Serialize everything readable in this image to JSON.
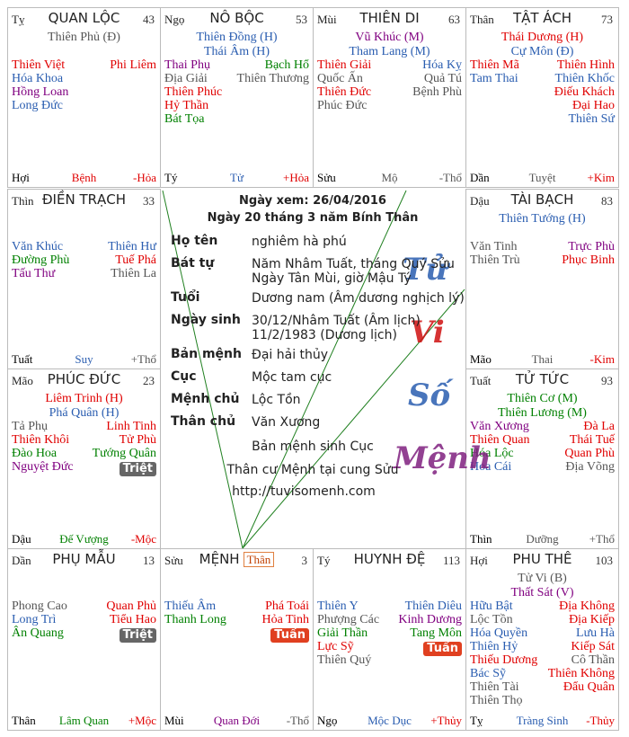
{
  "palaces": [
    {
      "branch": "Tỵ",
      "name": "QUAN LỘC",
      "number": 43,
      "main": [
        {
          "text": "Thiên Phủ (Đ)",
          "color": "#555555"
        }
      ],
      "left": [
        {
          "text": "Thiên Việt",
          "color": "#e00000"
        },
        {
          "text": "Hóa Khoa",
          "color": "#2a5db0"
        },
        {
          "text": "Hồng Loan",
          "color": "#800080"
        },
        {
          "text": "Long Đức",
          "color": "#2a5db0"
        }
      ],
      "right": [
        {
          "text": "Phi Liêm",
          "color": "#e00000"
        }
      ],
      "bottom": {
        "branch": "Hợi",
        "stage": "Bệnh",
        "stage_color": "#e00000",
        "element": "-Hỏa",
        "element_color": "#e00000"
      }
    },
    {
      "branch": "Ngọ",
      "name": "NÔ BỘC",
      "number": 53,
      "main": [
        {
          "text": "Thiên Đồng (H)",
          "color": "#2a5db0"
        },
        {
          "text": "Thái Âm (H)",
          "color": "#2a5db0"
        }
      ],
      "left": [
        {
          "text": "Thai Phụ",
          "color": "#800080"
        },
        {
          "text": "Địa Giải",
          "color": "#555555"
        },
        {
          "text": "Thiên Phúc",
          "color": "#e00000"
        },
        {
          "text": "Hỷ Thần",
          "color": "#e00000"
        },
        {
          "text": "Bát Tọa",
          "color": "#008000"
        }
      ],
      "right": [
        {
          "text": "Bạch Hổ",
          "color": "#008000"
        },
        {
          "text": "Thiên Thương",
          "color": "#555555"
        }
      ],
      "bottom": {
        "branch": "Tý",
        "stage": "Tử",
        "stage_color": "#2a5db0",
        "element": "+Hỏa",
        "element_color": "#e00000"
      }
    },
    {
      "branch": "Mùi",
      "name": "THIÊN DI",
      "number": 63,
      "main": [
        {
          "text": "Vũ Khúc (M)",
          "color": "#800080"
        },
        {
          "text": "Tham Lang (M)",
          "color": "#2a5db0"
        }
      ],
      "left": [
        {
          "text": "Thiên Giải",
          "color": "#e00000"
        },
        {
          "text": "Quốc Ấn",
          "color": "#555555"
        },
        {
          "text": "Thiên Đức",
          "color": "#e00000"
        },
        {
          "text": "Phúc Đức",
          "color": "#555555"
        }
      ],
      "right": [
        {
          "text": "Hóa Kỵ",
          "color": "#2a5db0"
        },
        {
          "text": "Quả Tú",
          "color": "#555555"
        },
        {
          "text": "Bệnh Phù",
          "color": "#555555"
        }
      ],
      "bottom": {
        "branch": "Sửu",
        "stage": "Mộ",
        "stage_color": "#555555",
        "element": "-Thổ",
        "element_color": "#555555"
      }
    },
    {
      "branch": "Thân",
      "name": "TẬT ÁCH",
      "number": 73,
      "main": [
        {
          "text": "Thái Dương (H)",
          "color": "#e00000"
        },
        {
          "text": "Cự Môn (Đ)",
          "color": "#2a5db0"
        }
      ],
      "left": [
        {
          "text": "Thiên Mã",
          "color": "#e00000"
        },
        {
          "text": "Tam Thai",
          "color": "#2a5db0"
        }
      ],
      "right": [
        {
          "text": "Thiên Hình",
          "color": "#e00000"
        },
        {
          "text": "Thiên Khốc",
          "color": "#2a5db0"
        },
        {
          "text": "Điếu Khách",
          "color": "#e00000"
        },
        {
          "text": "Đại Hao",
          "color": "#e00000"
        },
        {
          "text": "Thiên Sứ",
          "color": "#2a5db0"
        }
      ],
      "bottom": {
        "branch": "Dần",
        "stage": "Tuyệt",
        "stage_color": "#555555",
        "element": "+Kim",
        "element_color": "#e00000"
      }
    },
    {
      "branch": "Thìn",
      "name": "ĐIỀN TRẠCH",
      "number": 33,
      "main": [],
      "left": [
        {
          "text": "Văn Khúc",
          "color": "#2a5db0"
        },
        {
          "text": "Đường Phù",
          "color": "#008000"
        },
        {
          "text": "Tấu Thư",
          "color": "#800080"
        }
      ],
      "right": [
        {
          "text": "Thiên Hư",
          "color": "#2a5db0"
        },
        {
          "text": "Tuế Phá",
          "color": "#e00000"
        },
        {
          "text": "Thiên La",
          "color": "#555555"
        }
      ],
      "bottom": {
        "branch": "Tuất",
        "stage": "Suy",
        "stage_color": "#2a5db0",
        "element": "+Thổ",
        "element_color": "#555555"
      }
    },
    {
      "branch": "Dậu",
      "name": "TÀI BẠCH",
      "number": 83,
      "main": [
        {
          "text": "Thiên Tướng (H)",
          "color": "#2a5db0"
        }
      ],
      "left": [
        {
          "text": "Văn Tinh",
          "color": "#555555"
        },
        {
          "text": "Thiên Trù",
          "color": "#555555"
        }
      ],
      "right": [
        {
          "text": "Trực Phù",
          "color": "#800080"
        },
        {
          "text": "Phục Binh",
          "color": "#e00000"
        }
      ],
      "bottom": {
        "branch": "Mão",
        "stage": "Thai",
        "stage_color": "#555555",
        "element": "-Kim",
        "element_color": "#e00000"
      }
    },
    {
      "branch": "Mão",
      "name": "PHÚC ĐỨC",
      "number": 23,
      "main": [
        {
          "text": "Liêm Trinh (H)",
          "color": "#e00000"
        },
        {
          "text": "Phá Quân (H)",
          "color": "#2a5db0"
        }
      ],
      "left": [
        {
          "text": "Tả Phụ",
          "color": "#555555"
        },
        {
          "text": "Thiên Khôi",
          "color": "#e00000"
        },
        {
          "text": "Đào Hoa",
          "color": "#008000"
        },
        {
          "text": "Nguyệt Đức",
          "color": "#800080"
        }
      ],
      "right": [
        {
          "text": "Linh Tinh",
          "color": "#e00000"
        },
        {
          "text": "Tử Phù",
          "color": "#e00000"
        },
        {
          "text": "Tướng Quân",
          "color": "#008000"
        }
      ],
      "badge": {
        "text": "Triệt",
        "color": "#666666"
      },
      "bottom": {
        "branch": "Dậu",
        "stage": "Đế Vượng",
        "stage_color": "#008000",
        "element": "-Mộc",
        "element_color": "#e00000"
      }
    },
    {
      "branch": "Tuất",
      "name": "TỬ TỨC",
      "number": 93,
      "main": [
        {
          "text": "Thiên Cơ (M)",
          "color": "#008000"
        },
        {
          "text": "Thiên Lương (M)",
          "color": "#008000"
        }
      ],
      "left": [
        {
          "text": "Văn Xương",
          "color": "#800080"
        },
        {
          "text": "Thiên Quan",
          "color": "#e00000"
        },
        {
          "text": "Hóa Lộc",
          "color": "#008000"
        },
        {
          "text": "Hoa Cái",
          "color": "#2a5db0"
        }
      ],
      "right": [
        {
          "text": "Đà La",
          "color": "#e00000"
        },
        {
          "text": "Thái Tuế",
          "color": "#e00000"
        },
        {
          "text": "Quan Phù",
          "color": "#e00000"
        },
        {
          "text": "Địa Võng",
          "color": "#555555"
        }
      ],
      "bottom": {
        "branch": "Thìn",
        "stage": "Dưỡng",
        "stage_color": "#555555",
        "element": "+Thổ",
        "element_color": "#555555"
      }
    },
    {
      "branch": "Dần",
      "name": "PHỤ MẪU",
      "number": 13,
      "main": [],
      "left": [
        {
          "text": "Phong Cao",
          "color": "#555555"
        },
        {
          "text": "Long Trì",
          "color": "#2a5db0"
        },
        {
          "text": "Ân Quang",
          "color": "#008000"
        }
      ],
      "right": [
        {
          "text": "Quan Phủ",
          "color": "#e00000"
        },
        {
          "text": "Tiểu Hao",
          "color": "#e00000"
        }
      ],
      "badge": {
        "text": "Triệt",
        "color": "#666666"
      },
      "bottom": {
        "branch": "Thân",
        "stage": "Lâm Quan",
        "stage_color": "#008000",
        "element": "+Mộc",
        "element_color": "#e00000"
      }
    },
    {
      "branch": "Sửu",
      "name": "MỆNH",
      "number": 3,
      "tag": "Thân",
      "main": [],
      "left": [
        {
          "text": "Thiếu Âm",
          "color": "#2a5db0"
        },
        {
          "text": "Thanh Long",
          "color": "#008000"
        }
      ],
      "right": [
        {
          "text": "Phá Toái",
          "color": "#e00000"
        },
        {
          "text": "Hỏa Tinh",
          "color": "#e00000"
        }
      ],
      "badge": {
        "text": "Tuần",
        "color": "#e04020"
      },
      "bottom": {
        "branch": "Mùi",
        "stage": "Quan Đới",
        "stage_color": "#800080",
        "element": "-Thổ",
        "element_color": "#555555"
      }
    },
    {
      "branch": "Tý",
      "name": "HUYNH ĐỆ",
      "number": 113,
      "main": [],
      "left": [
        {
          "text": "Thiên Y",
          "color": "#2a5db0"
        },
        {
          "text": "Phượng Các",
          "color": "#555555"
        },
        {
          "text": "Giải Thần",
          "color": "#008000"
        },
        {
          "text": "Lực Sỹ",
          "color": "#e00000"
        },
        {
          "text": "Thiên Quý",
          "color": "#555555"
        }
      ],
      "right": [
        {
          "text": "Thiên Diêu",
          "color": "#2a5db0"
        },
        {
          "text": "Kinh Dương",
          "color": "#800080"
        },
        {
          "text": "Tang Môn",
          "color": "#008000"
        }
      ],
      "badge": {
        "text": "Tuần",
        "color": "#e04020"
      },
      "bottom": {
        "branch": "Ngọ",
        "stage": "Mộc Dục",
        "stage_color": "#2a5db0",
        "element": "+Thủy",
        "element_color": "#e00000"
      }
    },
    {
      "branch": "Hợi",
      "name": "PHU THÊ",
      "number": 103,
      "main": [
        {
          "text": "Tử Vi (B)",
          "color": "#555555"
        },
        {
          "text": "Thất Sát (V)",
          "color": "#800080"
        }
      ],
      "left": [
        {
          "text": "Hữu Bật",
          "color": "#2a5db0"
        },
        {
          "text": "Lộc Tồn",
          "color": "#555555"
        },
        {
          "text": "Hóa Quyền",
          "color": "#2a5db0"
        },
        {
          "text": "Thiên Hỷ",
          "color": "#2a5db0"
        },
        {
          "text": "Thiếu Dương",
          "color": "#e00000"
        },
        {
          "text": "Bác Sỹ",
          "color": "#2a5db0"
        },
        {
          "text": "Thiên Tài",
          "color": "#555555"
        },
        {
          "text": "Thiên Thọ",
          "color": "#555555"
        }
      ],
      "right": [
        {
          "text": "Địa Không",
          "color": "#e00000"
        },
        {
          "text": "Địa Kiếp",
          "color": "#e00000"
        },
        {
          "text": "Lưu Hà",
          "color": "#2a5db0"
        },
        {
          "text": "Kiếp Sát",
          "color": "#e00000"
        },
        {
          "text": "Cô Thần",
          "color": "#555555"
        },
        {
          "text": "Thiên Không",
          "color": "#e00000"
        },
        {
          "text": "Đẩu Quân",
          "color": "#e00000"
        }
      ],
      "bottom": {
        "branch": "Tỵ",
        "stage": "Tràng Sinh",
        "stage_color": "#2a5db0",
        "element": "-Thủy",
        "element_color": "#e00000"
      }
    }
  ],
  "center": {
    "date_line": "Ngày xem: 26/04/2016",
    "lunar_line": "Ngày 20 tháng 3 năm Bính Thân",
    "rows": [
      {
        "label": "Họ tên",
        "lines": [
          "nghiêm hà phú"
        ]
      },
      {
        "label": "Bát tự",
        "lines": [
          "Năm Nhâm Tuất, tháng Quý Sửu",
          "Ngày Tân Mùi, giờ Mậu Tý"
        ]
      },
      {
        "label": "Tuổi",
        "lines": [
          "Dương nam (Âm dương nghịch lý)"
        ]
      },
      {
        "label": "Ngày sinh",
        "lines": [
          "30/12/Nhâm Tuất (Âm lịch)",
          "11/2/1983 (Dương lịch)"
        ]
      },
      {
        "label": "Bản mệnh",
        "lines": [
          "Đại hải thủy"
        ]
      },
      {
        "label": "Cục",
        "lines": [
          "Mộc tam cục"
        ]
      },
      {
        "label": "Mệnh chủ",
        "lines": [
          "Lộc Tồn"
        ]
      },
      {
        "label": "Thân chủ",
        "lines": [
          "Văn Xương"
        ]
      }
    ],
    "notes": [
      "Bản mệnh sinh Cục",
      "Thân cư Mệnh tại cung Sửu"
    ],
    "url": "http://tuvisomenh.com",
    "watermark": [
      {
        "text": "Tử",
        "color": "#2a5db0"
      },
      {
        "text": "Vi",
        "color": "#d01010"
      },
      {
        "text": "Số",
        "color": "#2a5db0"
      },
      {
        "text": "Mệnh",
        "color": "#802080"
      }
    ]
  }
}
